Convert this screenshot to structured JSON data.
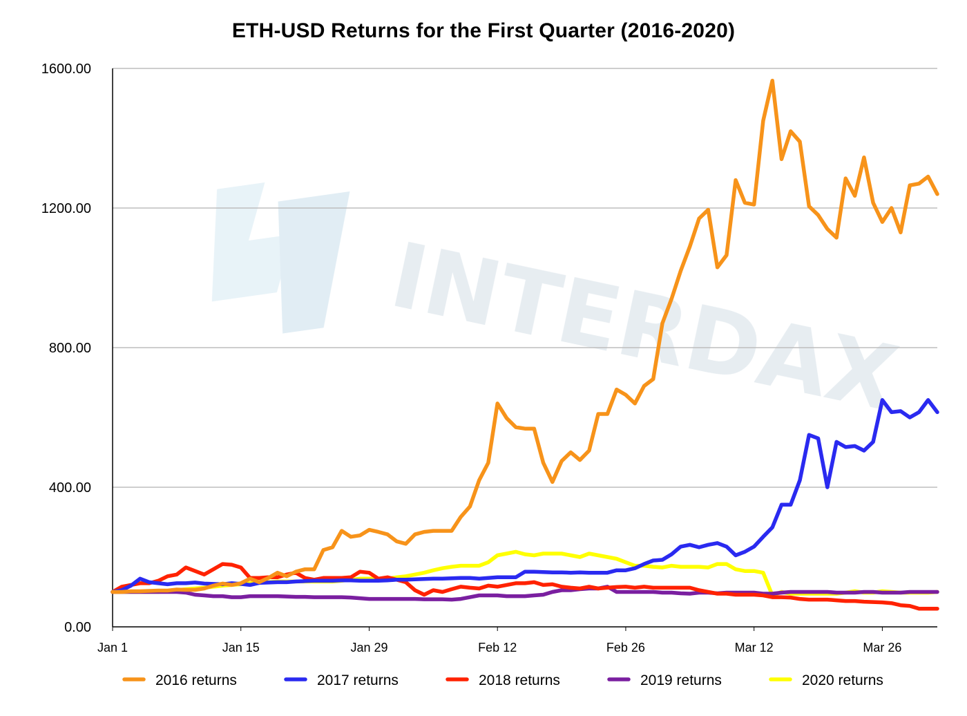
{
  "chart_data": {
    "type": "line",
    "title": "ETH-USD Returns for the First Quarter (2016-2020)",
    "xlabel": "",
    "ylabel": "",
    "ylim": [
      0,
      1600
    ],
    "y_ticks": [
      "0.00",
      "400.00",
      "800.00",
      "1200.00",
      "1600.00"
    ],
    "x_ticks": [
      {
        "day": 1,
        "label": "Jan 1"
      },
      {
        "day": 15,
        "label": "Jan 15"
      },
      {
        "day": 29,
        "label": "Jan 29"
      },
      {
        "day": 43,
        "label": "Feb 12"
      },
      {
        "day": 57,
        "label": "Feb 26"
      },
      {
        "day": 71,
        "label": "Mar 12"
      },
      {
        "day": 85,
        "label": "Mar 26"
      }
    ],
    "x": [
      1,
      2,
      3,
      4,
      5,
      6,
      7,
      8,
      9,
      10,
      11,
      12,
      13,
      14,
      15,
      16,
      17,
      18,
      19,
      20,
      21,
      22,
      23,
      24,
      25,
      26,
      27,
      28,
      29,
      30,
      31,
      32,
      33,
      34,
      35,
      36,
      37,
      38,
      39,
      40,
      41,
      42,
      43,
      44,
      45,
      46,
      47,
      48,
      49,
      50,
      51,
      52,
      53,
      54,
      55,
      56,
      57,
      58,
      59,
      60,
      61,
      62,
      63,
      64,
      65,
      66,
      67,
      68,
      69,
      70,
      71,
      72,
      73,
      74,
      75,
      76,
      77,
      78,
      79,
      80,
      81,
      82,
      83,
      84,
      85,
      86,
      87,
      88,
      89,
      90,
      91
    ],
    "grid": true,
    "legend_position": "bottom",
    "series": [
      {
        "name": "2016 returns",
        "color": "#F7931A",
        "values": [
          100,
          100,
          102,
          102,
          103,
          104,
          104,
          107,
          106,
          106,
          110,
          118,
          124,
          120,
          125,
          138,
          128,
          140,
          155,
          145,
          158,
          165,
          165,
          220,
          228,
          275,
          258,
          262,
          278,
          272,
          265,
          245,
          238,
          265,
          272,
          275,
          275,
          275,
          315,
          345,
          420,
          470,
          640,
          598,
          572,
          568,
          568,
          470,
          415,
          475,
          500,
          478,
          505,
          610,
          610,
          680,
          665,
          640,
          690,
          710,
          870,
          940,
          1020,
          1090,
          1170,
          1195,
          1030,
          1065,
          1280,
          1215,
          1210,
          1450,
          1565,
          1340,
          1420,
          1390,
          1205,
          1180,
          1140,
          1115,
          1285,
          1235,
          1345,
          1215,
          1160,
          1200,
          1130,
          1265,
          1270,
          1290,
          1240
        ]
      },
      {
        "name": "2017 returns",
        "color": "#2A2AF0",
        "values": [
          100,
          105,
          118,
          138,
          128,
          125,
          122,
          125,
          125,
          127,
          124,
          123,
          122,
          125,
          123,
          120,
          126,
          127,
          128,
          128,
          130,
          131,
          132,
          132,
          132,
          133,
          133,
          132,
          132,
          132,
          133,
          135,
          135,
          136,
          137,
          138,
          138,
          139,
          140,
          140,
          138,
          140,
          142,
          142,
          142,
          158,
          158,
          157,
          156,
          156,
          155,
          156,
          155,
          155,
          155,
          162,
          162,
          168,
          180,
          190,
          192,
          208,
          230,
          235,
          228,
          235,
          240,
          230,
          205,
          215,
          230,
          258,
          285,
          350,
          350,
          420,
          550,
          540,
          400,
          530,
          515,
          518,
          505,
          530,
          650,
          615,
          618,
          600,
          615,
          650,
          615
        ]
      },
      {
        "name": "2018 returns",
        "color": "#FF2200",
        "values": [
          100,
          115,
          120,
          125,
          125,
          132,
          145,
          150,
          170,
          160,
          150,
          165,
          180,
          178,
          170,
          140,
          140,
          142,
          142,
          150,
          155,
          140,
          135,
          140,
          140,
          140,
          142,
          158,
          155,
          138,
          142,
          135,
          128,
          105,
          92,
          105,
          100,
          108,
          115,
          112,
          110,
          118,
          115,
          120,
          125,
          125,
          128,
          120,
          122,
          115,
          112,
          110,
          115,
          110,
          112,
          114,
          115,
          112,
          115,
          112,
          112,
          112,
          112,
          112,
          105,
          100,
          95,
          95,
          92,
          92,
          92,
          90,
          85,
          85,
          84,
          80,
          78,
          78,
          78,
          76,
          74,
          74,
          72,
          71,
          70,
          68,
          62,
          60,
          52,
          52,
          52
        ]
      },
      {
        "name": "2019 returns",
        "color": "#7A1FA0",
        "values": [
          100,
          100,
          100,
          100,
          100,
          100,
          100,
          100,
          98,
          92,
          90,
          88,
          88,
          85,
          85,
          88,
          88,
          88,
          88,
          87,
          86,
          86,
          85,
          85,
          85,
          85,
          84,
          82,
          80,
          80,
          80,
          80,
          80,
          80,
          79,
          79,
          79,
          78,
          80,
          85,
          90,
          90,
          90,
          88,
          88,
          88,
          90,
          92,
          100,
          105,
          105,
          108,
          110,
          110,
          115,
          100,
          100,
          100,
          100,
          100,
          98,
          98,
          96,
          95,
          98,
          98,
          96,
          98,
          98,
          98,
          98,
          95,
          95,
          98,
          100,
          100,
          100,
          100,
          100,
          98,
          98,
          98,
          100,
          100,
          98,
          98,
          98,
          100,
          100,
          100,
          100
        ]
      },
      {
        "name": "2020 returns",
        "color": "#FFFF00",
        "values": [
          100,
          100,
          100,
          100,
          100,
          100,
          102,
          105,
          108,
          110,
          112,
          115,
          118,
          120,
          122,
          125,
          128,
          128,
          130,
          130,
          130,
          130,
          130,
          130,
          130,
          132,
          135,
          138,
          138,
          138,
          138,
          142,
          145,
          150,
          155,
          162,
          168,
          172,
          175,
          175,
          175,
          185,
          205,
          210,
          215,
          208,
          205,
          210,
          210,
          210,
          205,
          200,
          210,
          205,
          200,
          195,
          185,
          175,
          175,
          172,
          170,
          175,
          172,
          172,
          172,
          170,
          180,
          180,
          165,
          160,
          160,
          155,
          90,
          100,
          95,
          95,
          95,
          95,
          95,
          95,
          98,
          102,
          98,
          98,
          102,
          100,
          98,
          98,
          98,
          98,
          100
        ]
      }
    ]
  },
  "watermark": {
    "text": "INTERDAX",
    "icon": "interdax-logo-icon",
    "color": "#D8E6EE"
  }
}
